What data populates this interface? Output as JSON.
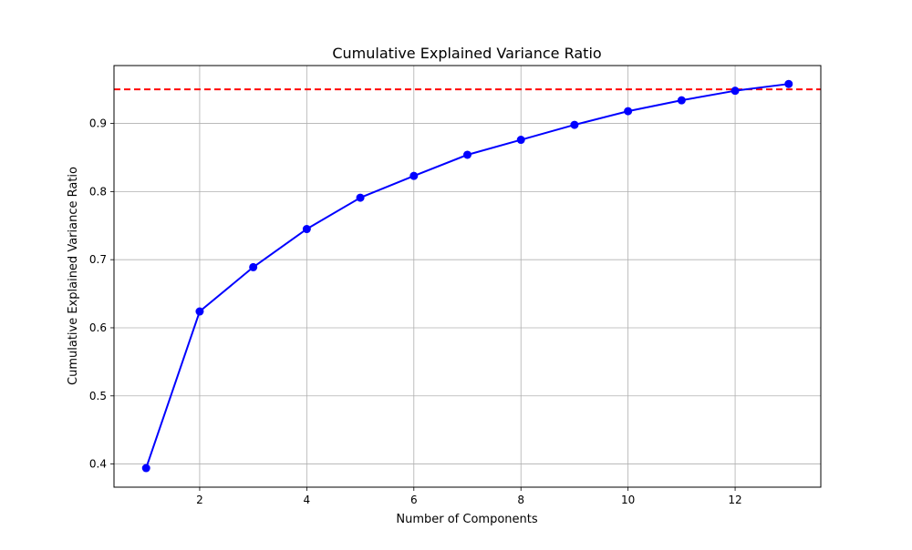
{
  "chart_data": {
    "type": "line",
    "title": "Cumulative Explained Variance Ratio",
    "xlabel": "Number of Components",
    "ylabel": "Cumulative Explained Variance Ratio",
    "x": [
      1,
      2,
      3,
      4,
      5,
      6,
      7,
      8,
      9,
      10,
      11,
      12,
      13
    ],
    "series": [
      {
        "values": [
          0.394,
          0.624,
          0.689,
          0.745,
          0.791,
          0.823,
          0.854,
          0.876,
          0.898,
          0.918,
          0.934,
          0.948,
          0.958
        ],
        "color": "#0000ff",
        "marker": "circle",
        "line_style": "solid"
      }
    ],
    "threshold": {
      "value": 0.95,
      "color": "#ff0000",
      "line_style": "dashed"
    },
    "xlim": [
      0.4,
      13.6
    ],
    "ylim": [
      0.366,
      0.985
    ],
    "xticks": [
      2,
      4,
      6,
      8,
      10,
      12
    ],
    "xtick_labels": [
      "2",
      "4",
      "6",
      "8",
      "10",
      "12"
    ],
    "yticks": [
      0.4,
      0.5,
      0.6,
      0.7,
      0.8,
      0.9
    ],
    "ytick_labels": [
      "0.4",
      "0.5",
      "0.6",
      "0.7",
      "0.8",
      "0.9"
    ],
    "grid": true,
    "legend": false
  }
}
